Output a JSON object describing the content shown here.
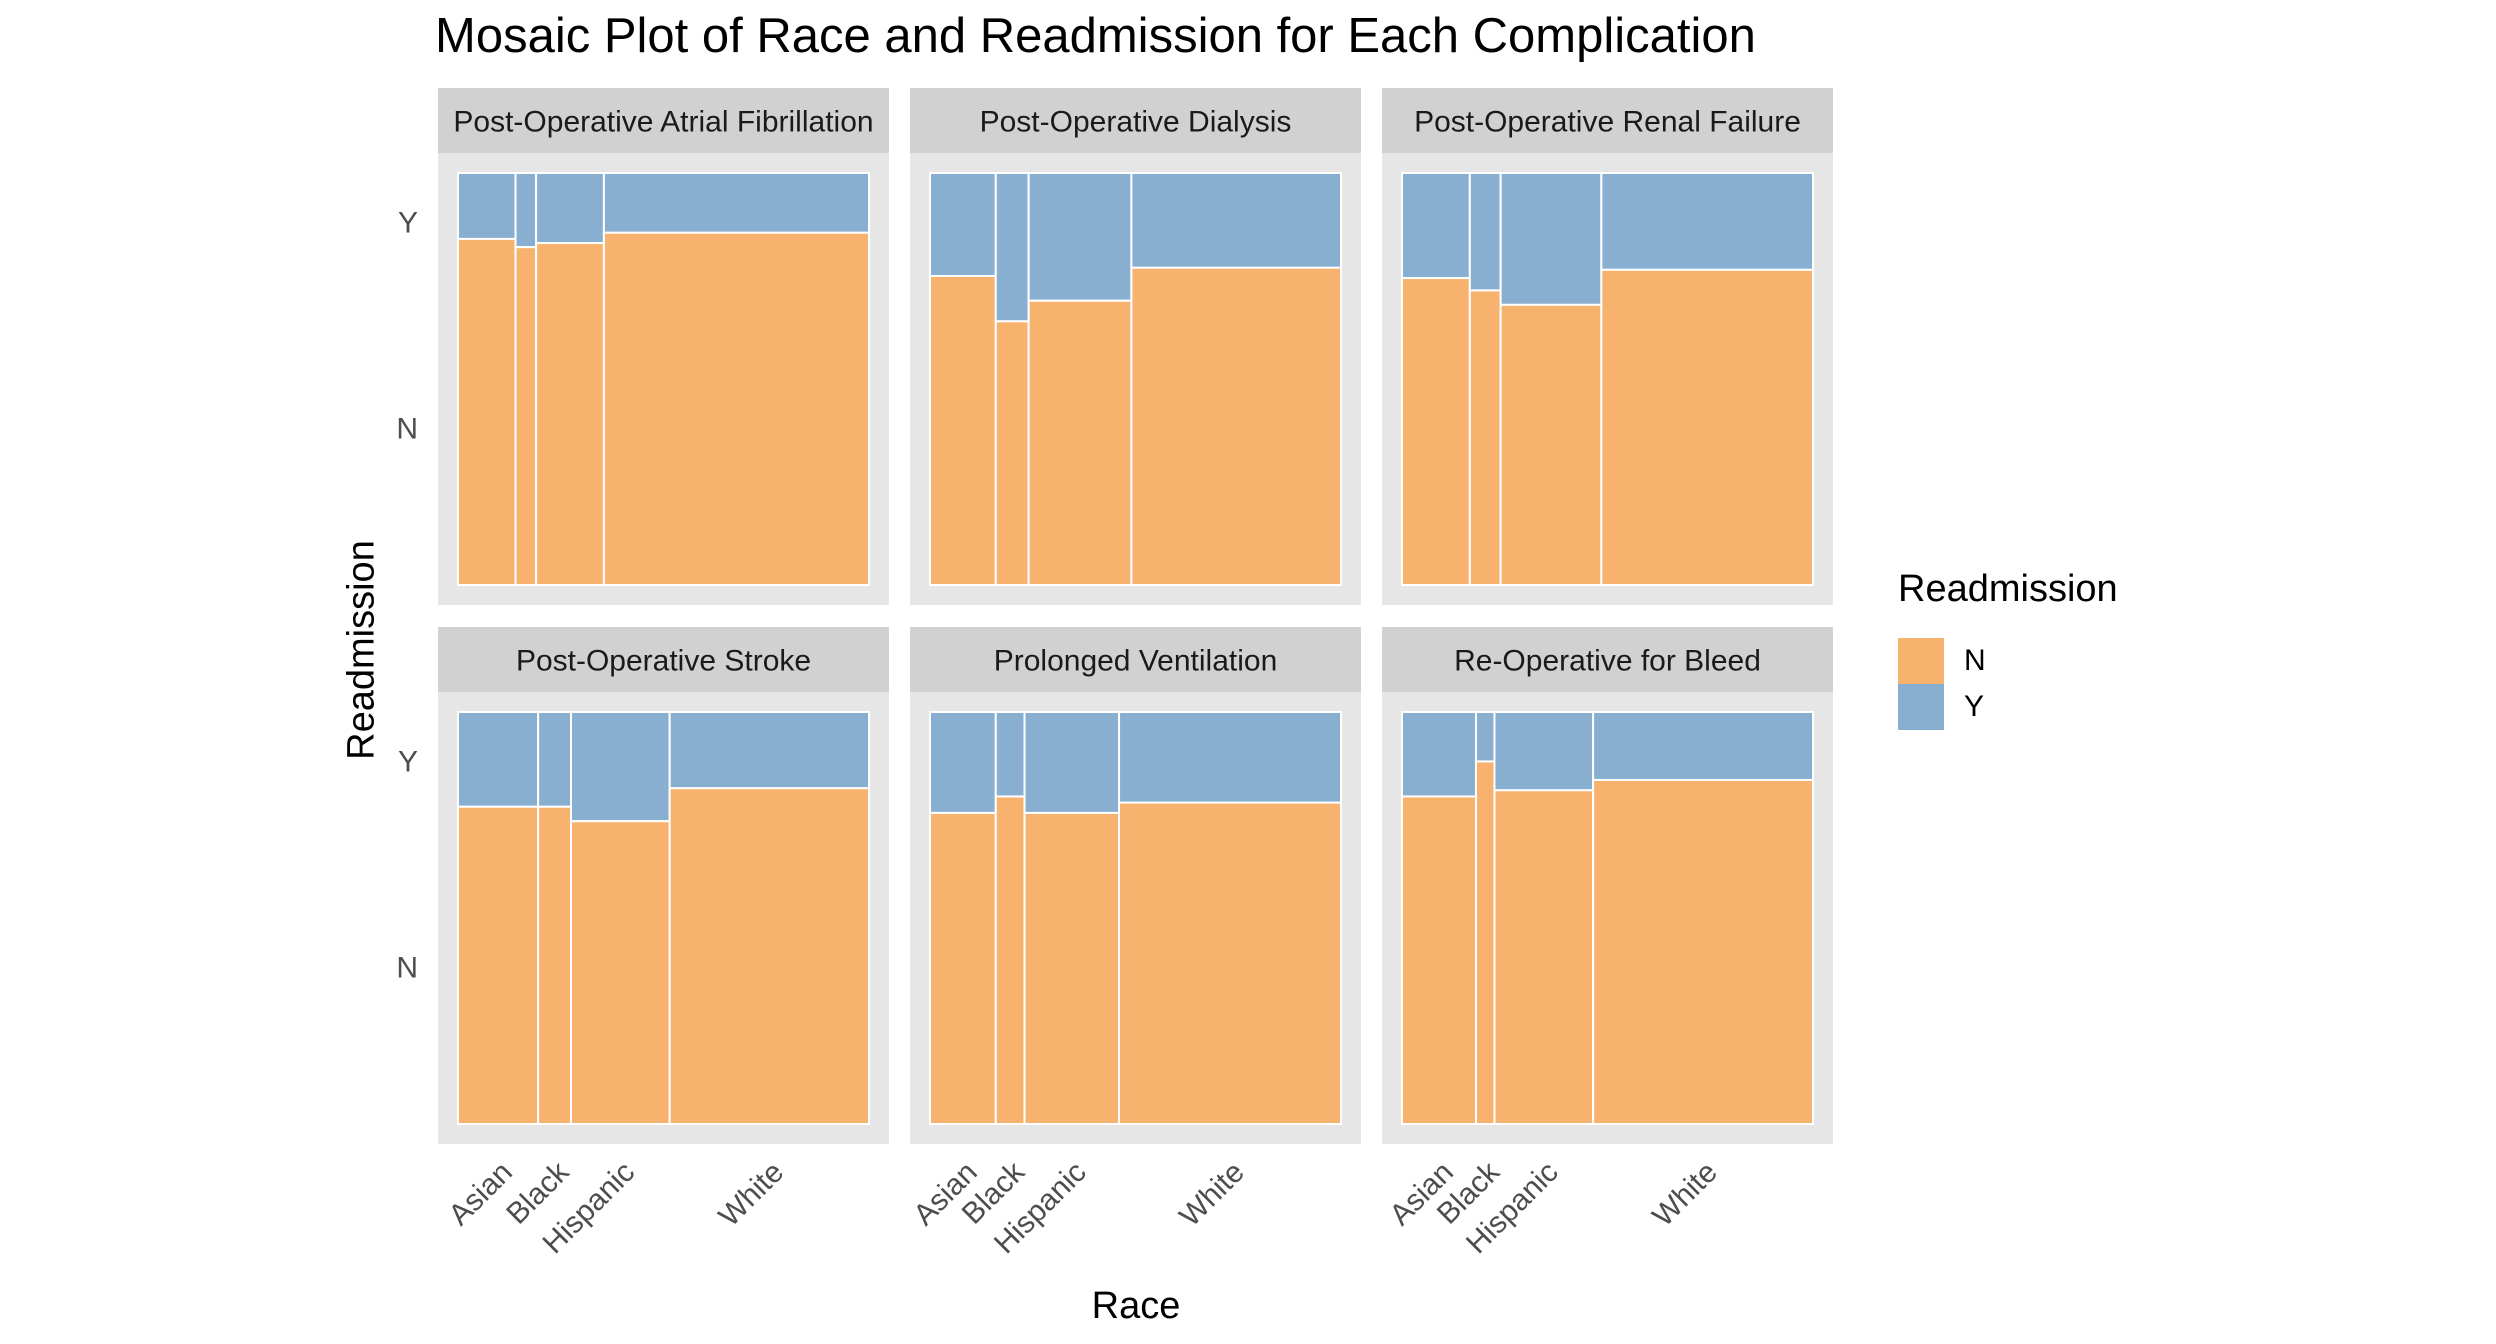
{
  "colors": {
    "N": "#F7B26D",
    "Y": "#88AED0",
    "panel_bg": "#E6E6E6",
    "strip_bg": "#D1D1D1",
    "tile_border": "#FFFFFF"
  },
  "chart_data": {
    "type": "mosaic",
    "title": "Mosaic Plot of Race and Readmission for Each Complication",
    "xlabel": "Race",
    "ylabel": "Readmission",
    "x_tick_labels": [
      "Asian",
      "Black",
      "Hispanic",
      "White"
    ],
    "y_tick_labels": [
      "N",
      "Y"
    ],
    "legend": {
      "title": "Readmission",
      "position": "right",
      "entries": [
        "N",
        "Y"
      ]
    },
    "grid": false,
    "facets": [
      {
        "name": "Post-Operative Atrial Fibrillation",
        "race_proportions": {
          "Asian": 0.14,
          "Black": 0.05,
          "Hispanic": 0.165,
          "White": 0.645
        },
        "readmission_N_share": {
          "Asian": 0.84,
          "Black": 0.82,
          "Hispanic": 0.83,
          "White": 0.855
        }
      },
      {
        "name": "Post-Operative Dialysis",
        "race_proportions": {
          "Asian": 0.16,
          "Black": 0.08,
          "Hispanic": 0.25,
          "White": 0.51
        },
        "readmission_N_share": {
          "Asian": 0.75,
          "Black": 0.64,
          "Hispanic": 0.69,
          "White": 0.77
        }
      },
      {
        "name": "Post-Operative Renal Failure",
        "race_proportions": {
          "Asian": 0.165,
          "Black": 0.075,
          "Hispanic": 0.245,
          "White": 0.515
        },
        "readmission_N_share": {
          "Asian": 0.745,
          "Black": 0.715,
          "Hispanic": 0.68,
          "White": 0.765
        }
      },
      {
        "name": "Post-Operative Stroke",
        "race_proportions": {
          "Asian": 0.195,
          "Black": 0.08,
          "Hispanic": 0.24,
          "White": 0.485
        },
        "readmission_N_share": {
          "Asian": 0.77,
          "Black": 0.77,
          "Hispanic": 0.735,
          "White": 0.815
        }
      },
      {
        "name": "Prolonged Ventilation",
        "race_proportions": {
          "Asian": 0.16,
          "Black": 0.07,
          "Hispanic": 0.23,
          "White": 0.54
        },
        "readmission_N_share": {
          "Asian": 0.755,
          "Black": 0.795,
          "Hispanic": 0.755,
          "White": 0.78
        }
      },
      {
        "name": "Re-Operative for Bleed",
        "race_proportions": {
          "Asian": 0.18,
          "Black": 0.045,
          "Hispanic": 0.24,
          "White": 0.535
        },
        "readmission_N_share": {
          "Asian": 0.795,
          "Black": 0.88,
          "Hispanic": 0.81,
          "White": 0.835
        }
      }
    ]
  }
}
